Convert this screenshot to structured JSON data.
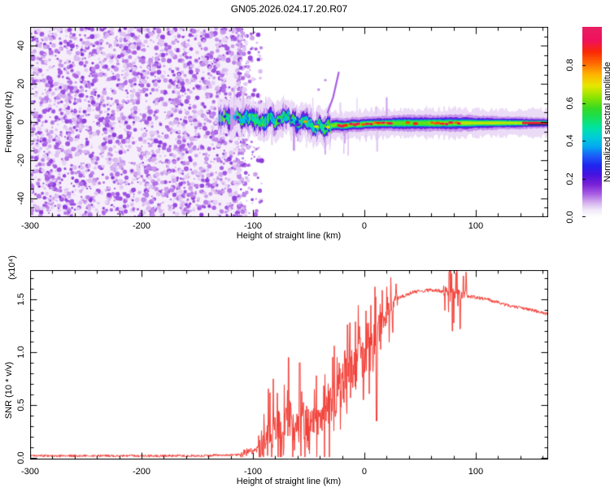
{
  "title": "GN05.2026.024.17.20.R07",
  "colors": {
    "background": "#ffffff",
    "frame": "#000000",
    "text": "#000000",
    "snr_line": "#f23b33"
  },
  "axes": {
    "xlabel": "Height of straight line (km)",
    "x_ticks": [
      "-300",
      "-200",
      "-100",
      "0",
      "100"
    ],
    "x_tick_values": [
      -300,
      -200,
      -100,
      0,
      100
    ],
    "x_minor_step": 20
  },
  "top_panel": {
    "ylabel": "Frequency (Hz)",
    "y_ticks": [
      "40",
      "20",
      "0",
      "-20",
      "-40"
    ],
    "y_tick_values": [
      40,
      20,
      0,
      -20,
      -40
    ],
    "y_minor_step": 5,
    "xlim": [
      -300,
      165
    ],
    "ylim": [
      -50,
      50
    ]
  },
  "colorbar": {
    "label": "Normalized spectral amplitude",
    "ticks": [
      "0.0",
      "0.2",
      "0.4",
      "0.6",
      "0.8"
    ],
    "tick_values": [
      0,
      0.2,
      0.4,
      0.6,
      0.8
    ],
    "range": [
      0,
      1
    ],
    "stops": [
      [
        0.0,
        "#ffffff"
      ],
      [
        0.035,
        "#f2e9fa"
      ],
      [
        0.07,
        "#d9b8f0"
      ],
      [
        0.12,
        "#a85fe4"
      ],
      [
        0.17,
        "#7a22d6"
      ],
      [
        0.22,
        "#4812e0"
      ],
      [
        0.27,
        "#1f25ee"
      ],
      [
        0.32,
        "#1c5cf8"
      ],
      [
        0.37,
        "#05a8f0"
      ],
      [
        0.42,
        "#00cdd8"
      ],
      [
        0.47,
        "#00e4a4"
      ],
      [
        0.52,
        "#16e05c"
      ],
      [
        0.57,
        "#33d926"
      ],
      [
        0.63,
        "#8ce400"
      ],
      [
        0.69,
        "#e6e800"
      ],
      [
        0.75,
        "#ffb400"
      ],
      [
        0.81,
        "#ff6a00"
      ],
      [
        0.87,
        "#fb2807"
      ],
      [
        0.93,
        "#f0115c"
      ],
      [
        1.0,
        "#e91e63"
      ]
    ]
  },
  "bottom_panel": {
    "ylabel": "SNR (10 * v/v)",
    "y_scale_note": "(x10⁴)",
    "y_ticks": [
      "1.5",
      "1.0",
      "0.5",
      "0.0"
    ],
    "y_tick_values": [
      1.5,
      1.0,
      0.5,
      0.0
    ],
    "y_minor_step": 0.1,
    "xlim": [
      -300,
      165
    ],
    "ylim": [
      0,
      1.78
    ]
  },
  "chart_data": [
    {
      "type": "heatmap",
      "title": "GN05.2026.024.17.20.R07",
      "xlabel": "Height of straight line (km)",
      "ylabel": "Frequency (Hz)",
      "colorbar_label": "Normalized spectral amplitude",
      "xlim": [
        -300,
        165
      ],
      "ylim": [
        -50,
        50
      ],
      "amplitude_range": [
        0,
        1
      ],
      "seed": 11,
      "noise_region": {
        "x_range": [
          -300,
          -113
        ],
        "tail_to": -92,
        "base_amplitude": 0.025,
        "blob_amplitude": [
          0.05,
          0.15
        ],
        "blob_count": 3000,
        "description": "full-height light-purple speckle noise left of -113 km, sharply ending with a short decaying tail"
      },
      "signal_band": {
        "description": "narrow spectral line near 0 Hz: wavy blobby cyan-green from -130 to -30 km, tight green band with red-orange dots from -30 to +85 km, smooth green-yellow core beyond, continuous red core stripe at far right",
        "center_hz": [
          [
            -131,
            1
          ],
          [
            -125,
            2
          ],
          [
            -120,
            1.5
          ],
          [
            -115,
            3
          ],
          [
            -110,
            0.5
          ],
          [
            -105,
            2
          ],
          [
            -100,
            3.5
          ],
          [
            -95,
            -0.5
          ],
          [
            -90,
            1
          ],
          [
            -85,
            2.5
          ],
          [
            -80,
            0
          ],
          [
            -75,
            1.5
          ],
          [
            -70,
            3
          ],
          [
            -65,
            1.5
          ],
          [
            -60,
            -1.5
          ],
          [
            -55,
            0.5
          ],
          [
            -50,
            -1
          ],
          [
            -45,
            -3.5
          ],
          [
            -40,
            -2
          ],
          [
            -35,
            -2.8
          ],
          [
            -30,
            -2
          ],
          [
            -25,
            -1.5
          ],
          [
            -20,
            -2
          ],
          [
            -15,
            -1.8
          ],
          [
            -10,
            -1.2
          ],
          [
            -5,
            -1.5
          ],
          [
            0,
            -1
          ],
          [
            10,
            -0.8
          ],
          [
            20,
            -0.7
          ],
          [
            40,
            -0.6
          ],
          [
            80,
            -0.6
          ],
          [
            120,
            -0.5
          ],
          [
            165,
            -0.5
          ]
        ],
        "segments": [
          {
            "x_range": [
              -131,
              -112
            ],
            "core_amplitude": 0.38,
            "style": "sparse cyan blobs inside noise"
          },
          {
            "x_range": [
              -112,
              -60
            ],
            "core_amplitude": 0.48,
            "style": "wavy blobby cyan-green band"
          },
          {
            "x_range": [
              -60,
              -32
            ],
            "core_amplitude": 0.58,
            "style": "green core, occasional orange dots"
          },
          {
            "x_range": [
              -32,
              25
            ],
            "core_amplitude": 0.62,
            "style": "tight band, frequent red dots"
          },
          {
            "x_range": [
              25,
              58
            ],
            "core_amplitude": 0.6,
            "style": "green core, some orange dots"
          },
          {
            "x_range": [
              58,
              85
            ],
            "core_amplitude": 0.62,
            "style": "red dot cluster, scalloped fringe"
          },
          {
            "x_range": [
              85,
              142
            ],
            "core_amplitude": 0.66,
            "style": "smooth green-yellow core"
          },
          {
            "x_range": [
              142,
              165
            ],
            "core_amplitude": 0.9,
            "style": "continuous red core stripe"
          }
        ],
        "layer_half_widths_hz": [
          [
            0.045,
            7
          ],
          [
            0.09,
            3.8
          ],
          [
            0.18,
            2.6
          ],
          [
            0.3,
            2.0
          ],
          [
            0.5,
            1.5
          ],
          [
            0.62,
            0.8
          ]
        ],
        "wavy_width_scale": 1.45,
        "dark_line_color": "#2a1070"
      },
      "chirp": {
        "description": "faint purple diagonal streak rising from the band toward +26 Hz near -25 km",
        "points_km_hz": [
          [
            -33,
            5
          ],
          [
            -28,
            13
          ],
          [
            -23,
            26
          ]
        ],
        "amplitude": 0.12,
        "isolated_blobs": [
          [
            -35,
            22
          ],
          [
            -41,
            17
          ]
        ]
      },
      "vertical_streaks": {
        "count": 30,
        "x_range": [
          -118,
          22
        ],
        "length_hz": [
          3,
          12
        ],
        "amplitude": [
          0.04,
          0.09
        ]
      }
    },
    {
      "type": "line",
      "name": "SNR vs height of straight line",
      "color": "#f23b33",
      "xlabel": "Height of straight line (km)",
      "ylabel": "SNR (10 * v/v) (x10⁴)",
      "xlim": [
        -300,
        165
      ],
      "ylim": [
        0,
        1.78
      ],
      "seed": 5,
      "mean_profile": [
        [
          -300,
          0.02
        ],
        [
          -150,
          0.02
        ],
        [
          -112,
          0.03
        ],
        [
          -100,
          0.07
        ],
        [
          -92,
          0.12
        ],
        [
          -85,
          0.22
        ],
        [
          -75,
          0.27
        ],
        [
          -68,
          0.3
        ],
        [
          -60,
          0.28
        ],
        [
          -50,
          0.32
        ],
        [
          -42,
          0.34
        ],
        [
          -35,
          0.45
        ],
        [
          -28,
          0.55
        ],
        [
          -22,
          0.65
        ],
        [
          -15,
          0.8
        ],
        [
          -8,
          0.92
        ],
        [
          0,
          1.0
        ],
        [
          6,
          1.05
        ],
        [
          12,
          1.18
        ],
        [
          18,
          1.32
        ],
        [
          25,
          1.45
        ],
        [
          32,
          1.52
        ],
        [
          45,
          1.57
        ],
        [
          60,
          1.59
        ],
        [
          72,
          1.57
        ],
        [
          85,
          1.55
        ],
        [
          93,
          1.53
        ],
        [
          110,
          1.5
        ],
        [
          130,
          1.44
        ],
        [
          150,
          1.4
        ],
        [
          165,
          1.36
        ]
      ],
      "noise_segments": [
        {
          "x_range": [
            -300,
            -112
          ],
          "jitter": 0.012,
          "spike_prob": 0,
          "spike_max": 0
        },
        {
          "x_range": [
            -112,
            -95
          ],
          "jitter": 0.04,
          "spike_prob": 0.08,
          "spike_max": 0.18
        },
        {
          "x_range": [
            -95,
            -62
          ],
          "jitter": 0.14,
          "spike_prob": 0.45,
          "spike_max": 0.42
        },
        {
          "x_range": [
            -62,
            -38
          ],
          "jitter": 0.16,
          "spike_prob": 0.45,
          "spike_max": 0.4
        },
        {
          "x_range": [
            -38,
            -15
          ],
          "jitter": 0.2,
          "spike_prob": 0.5,
          "spike_max": 0.45
        },
        {
          "x_range": [
            -15,
            12
          ],
          "jitter": 0.18,
          "spike_prob": 0.45,
          "spike_max": 0.4
        },
        {
          "x_range": [
            12,
            30
          ],
          "jitter": 0.1,
          "spike_prob": 0.35,
          "spike_max": 0.25
        },
        {
          "x_range": [
            30,
            71
          ],
          "jitter": 0.018,
          "spike_prob": 0,
          "spike_max": 0
        },
        {
          "x_range": [
            71,
            92
          ],
          "jitter": 0.05,
          "spike_prob": 0.3,
          "spike_max": 0.28
        },
        {
          "x_range": [
            92,
            165
          ],
          "jitter": 0.016,
          "spike_prob": 0,
          "spike_max": 0
        }
      ],
      "notable_features": [
        {
          "km": -68,
          "value": 0.95
        },
        {
          "km": -58,
          "value": 0.9
        },
        {
          "km": -15,
          "value": 1.26
        },
        {
          "km": -1,
          "value": 0.55
        },
        {
          "km": 11,
          "value": 0.35
        },
        {
          "km": 76,
          "value": 1.76
        },
        {
          "km": 79,
          "value": 1.2
        },
        {
          "km": 83,
          "value": 1.77
        },
        {
          "km": 86,
          "value": 1.22
        },
        {
          "km": 89,
          "value": 1.72
        }
      ]
    }
  ]
}
